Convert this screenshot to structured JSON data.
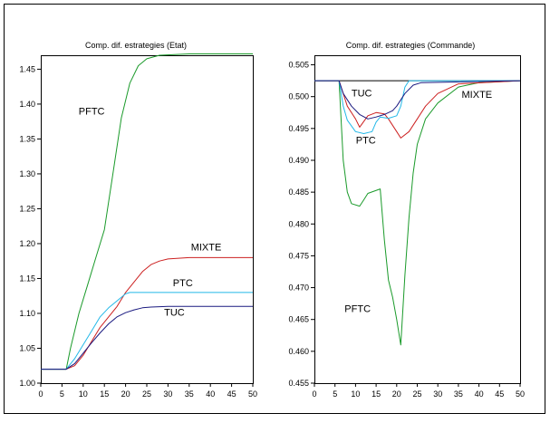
{
  "chart_data": [
    {
      "type": "line",
      "title": "Comp. dif. estrategies (Etat)",
      "xlabel": "",
      "ylabel": "",
      "xlim": [
        0,
        50
      ],
      "ylim": [
        1.0,
        1.47
      ],
      "x_ticks": [
        0,
        5,
        10,
        15,
        20,
        25,
        30,
        35,
        40,
        45,
        50
      ],
      "y_ticks": [
        1.0,
        1.05,
        1.1,
        1.15,
        1.2,
        1.25,
        1.3,
        1.35,
        1.4,
        1.45
      ],
      "x_tick_labels": [
        "0",
        "5",
        "10",
        "15",
        "20",
        "25",
        "30",
        "35",
        "40",
        "45",
        "50"
      ],
      "y_tick_labels": [
        "1.00",
        "1.05",
        "1.10",
        "1.15",
        "1.20",
        "1.25",
        "1.30",
        "1.35",
        "1.40",
        "1.45"
      ],
      "grid": false,
      "legend": "none",
      "series": [
        {
          "name": "PFTC",
          "color": "#1a9a2a",
          "label_at": [
            12,
            1.385
          ],
          "points": [
            [
              0,
              1.02
            ],
            [
              5,
              1.02
            ],
            [
              6,
              1.02
            ],
            [
              7,
              1.05
            ],
            [
              9,
              1.1
            ],
            [
              11,
              1.14
            ],
            [
              13,
              1.18
            ],
            [
              15,
              1.22
            ],
            [
              17,
              1.3
            ],
            [
              19,
              1.38
            ],
            [
              21,
              1.43
            ],
            [
              23,
              1.455
            ],
            [
              25,
              1.465
            ],
            [
              28,
              1.47
            ],
            [
              35,
              1.472
            ],
            [
              50,
              1.472
            ]
          ]
        },
        {
          "name": "MIXTE",
          "color": "#cc2020",
          "label_at": [
            39,
            1.19
          ],
          "points": [
            [
              0,
              1.02
            ],
            [
              6,
              1.02
            ],
            [
              8,
              1.025
            ],
            [
              10,
              1.04
            ],
            [
              12,
              1.06
            ],
            [
              14,
              1.08
            ],
            [
              16,
              1.095
            ],
            [
              18,
              1.11
            ],
            [
              20,
              1.13
            ],
            [
              22,
              1.145
            ],
            [
              24,
              1.16
            ],
            [
              26,
              1.17
            ],
            [
              28,
              1.175
            ],
            [
              30,
              1.178
            ],
            [
              35,
              1.18
            ],
            [
              50,
              1.18
            ]
          ]
        },
        {
          "name": "PTC",
          "color": "#22b8e8",
          "label_at": [
            33.5,
            1.139
          ],
          "points": [
            [
              0,
              1.02
            ],
            [
              6,
              1.02
            ],
            [
              8,
              1.035
            ],
            [
              10,
              1.055
            ],
            [
              12,
              1.075
            ],
            [
              14,
              1.095
            ],
            [
              16,
              1.108
            ],
            [
              18,
              1.118
            ],
            [
              20,
              1.128
            ],
            [
              21,
              1.13
            ],
            [
              25,
              1.13
            ],
            [
              50,
              1.13
            ]
          ]
        },
        {
          "name": "TUC",
          "color": "#1a1a80",
          "label_at": [
            31.5,
            1.097
          ],
          "points": [
            [
              0,
              1.02
            ],
            [
              6,
              1.02
            ],
            [
              8,
              1.028
            ],
            [
              10,
              1.043
            ],
            [
              12,
              1.058
            ],
            [
              14,
              1.072
            ],
            [
              16,
              1.085
            ],
            [
              18,
              1.095
            ],
            [
              20,
              1.101
            ],
            [
              22,
              1.105
            ],
            [
              24,
              1.108
            ],
            [
              26,
              1.109
            ],
            [
              30,
              1.11
            ],
            [
              50,
              1.11
            ]
          ]
        }
      ]
    },
    {
      "type": "line",
      "title": "Comp. dif. estrategies (Commande)",
      "xlabel": "",
      "ylabel": "",
      "xlim": [
        0,
        50
      ],
      "ylim": [
        0.455,
        0.5065
      ],
      "x_ticks": [
        0,
        5,
        10,
        15,
        20,
        25,
        30,
        35,
        40,
        45,
        50
      ],
      "y_ticks": [
        0.455,
        0.46,
        0.465,
        0.47,
        0.475,
        0.48,
        0.485,
        0.49,
        0.495,
        0.5,
        0.505
      ],
      "x_tick_labels": [
        "0",
        "5",
        "10",
        "15",
        "20",
        "25",
        "30",
        "35",
        "40",
        "45",
        "50"
      ],
      "y_tick_labels": [
        "0.455",
        "0.460",
        "0.465",
        "0.470",
        "0.475",
        "0.480",
        "0.485",
        "0.490",
        "0.495",
        "0.500",
        "0.505"
      ],
      "grid": false,
      "legend": "none",
      "reference_line": {
        "y": 0.5025,
        "color": "#000000"
      },
      "series": [
        {
          "name": "PFTC",
          "color": "#1a9a2a",
          "label_at": [
            10.5,
            0.4662
          ],
          "points": [
            [
              0,
              0.5025
            ],
            [
              6,
              0.5025
            ],
            [
              7,
              0.49
            ],
            [
              8,
              0.485
            ],
            [
              9,
              0.4832
            ],
            [
              11,
              0.4828
            ],
            [
              12,
              0.4838
            ],
            [
              13,
              0.4848
            ],
            [
              16,
              0.4855
            ],
            [
              17,
              0.4775
            ],
            [
              18,
              0.4712
            ],
            [
              19,
              0.4685
            ],
            [
              20,
              0.465
            ],
            [
              21,
              0.461
            ],
            [
              22,
              0.472
            ],
            [
              23,
              0.481
            ],
            [
              24,
              0.488
            ],
            [
              25,
              0.4925
            ],
            [
              27,
              0.4965
            ],
            [
              30,
              0.499
            ],
            [
              35,
              0.5015
            ],
            [
              40,
              0.5022
            ],
            [
              50,
              0.5025
            ]
          ]
        },
        {
          "name": "MIXTE",
          "color": "#cc2020",
          "label_at": [
            39.5,
            0.4998
          ],
          "points": [
            [
              0,
              0.5025
            ],
            [
              6,
              0.5025
            ],
            [
              8,
              0.4985
            ],
            [
              10,
              0.4965
            ],
            [
              11,
              0.4952
            ],
            [
              13,
              0.497
            ],
            [
              15,
              0.4975
            ],
            [
              17,
              0.4973
            ],
            [
              18,
              0.4965
            ],
            [
              20,
              0.4945
            ],
            [
              21,
              0.4935
            ],
            [
              23,
              0.4945
            ],
            [
              25,
              0.4965
            ],
            [
              27,
              0.4985
            ],
            [
              30,
              0.5005
            ],
            [
              35,
              0.502
            ],
            [
              50,
              0.5025
            ]
          ]
        },
        {
          "name": "PTC",
          "color": "#22b8e8",
          "label_at": [
            12.5,
            0.4926
          ],
          "points": [
            [
              0,
              0.5025
            ],
            [
              6,
              0.5025
            ],
            [
              7,
              0.4985
            ],
            [
              8,
              0.4963
            ],
            [
              10,
              0.4945
            ],
            [
              12,
              0.4942
            ],
            [
              14,
              0.4945
            ],
            [
              15,
              0.496
            ],
            [
              16,
              0.4968
            ],
            [
              18,
              0.4966
            ],
            [
              20,
              0.497
            ],
            [
              21,
              0.4985
            ],
            [
              22,
              0.5015
            ],
            [
              23,
              0.5025
            ],
            [
              50,
              0.5025
            ]
          ]
        },
        {
          "name": "TUC",
          "color": "#1a1a80",
          "label_at": [
            11.5,
            0.5
          ],
          "points": [
            [
              0,
              0.5025
            ],
            [
              6,
              0.5025
            ],
            [
              7,
              0.5005
            ],
            [
              9,
              0.4985
            ],
            [
              11,
              0.4972
            ],
            [
              13,
              0.4965
            ],
            [
              15,
              0.4968
            ],
            [
              17,
              0.4972
            ],
            [
              19,
              0.4978
            ],
            [
              20,
              0.4985
            ],
            [
              22,
              0.5005
            ],
            [
              24,
              0.5018
            ],
            [
              26,
              0.5022
            ],
            [
              50,
              0.5025
            ]
          ]
        }
      ]
    }
  ]
}
